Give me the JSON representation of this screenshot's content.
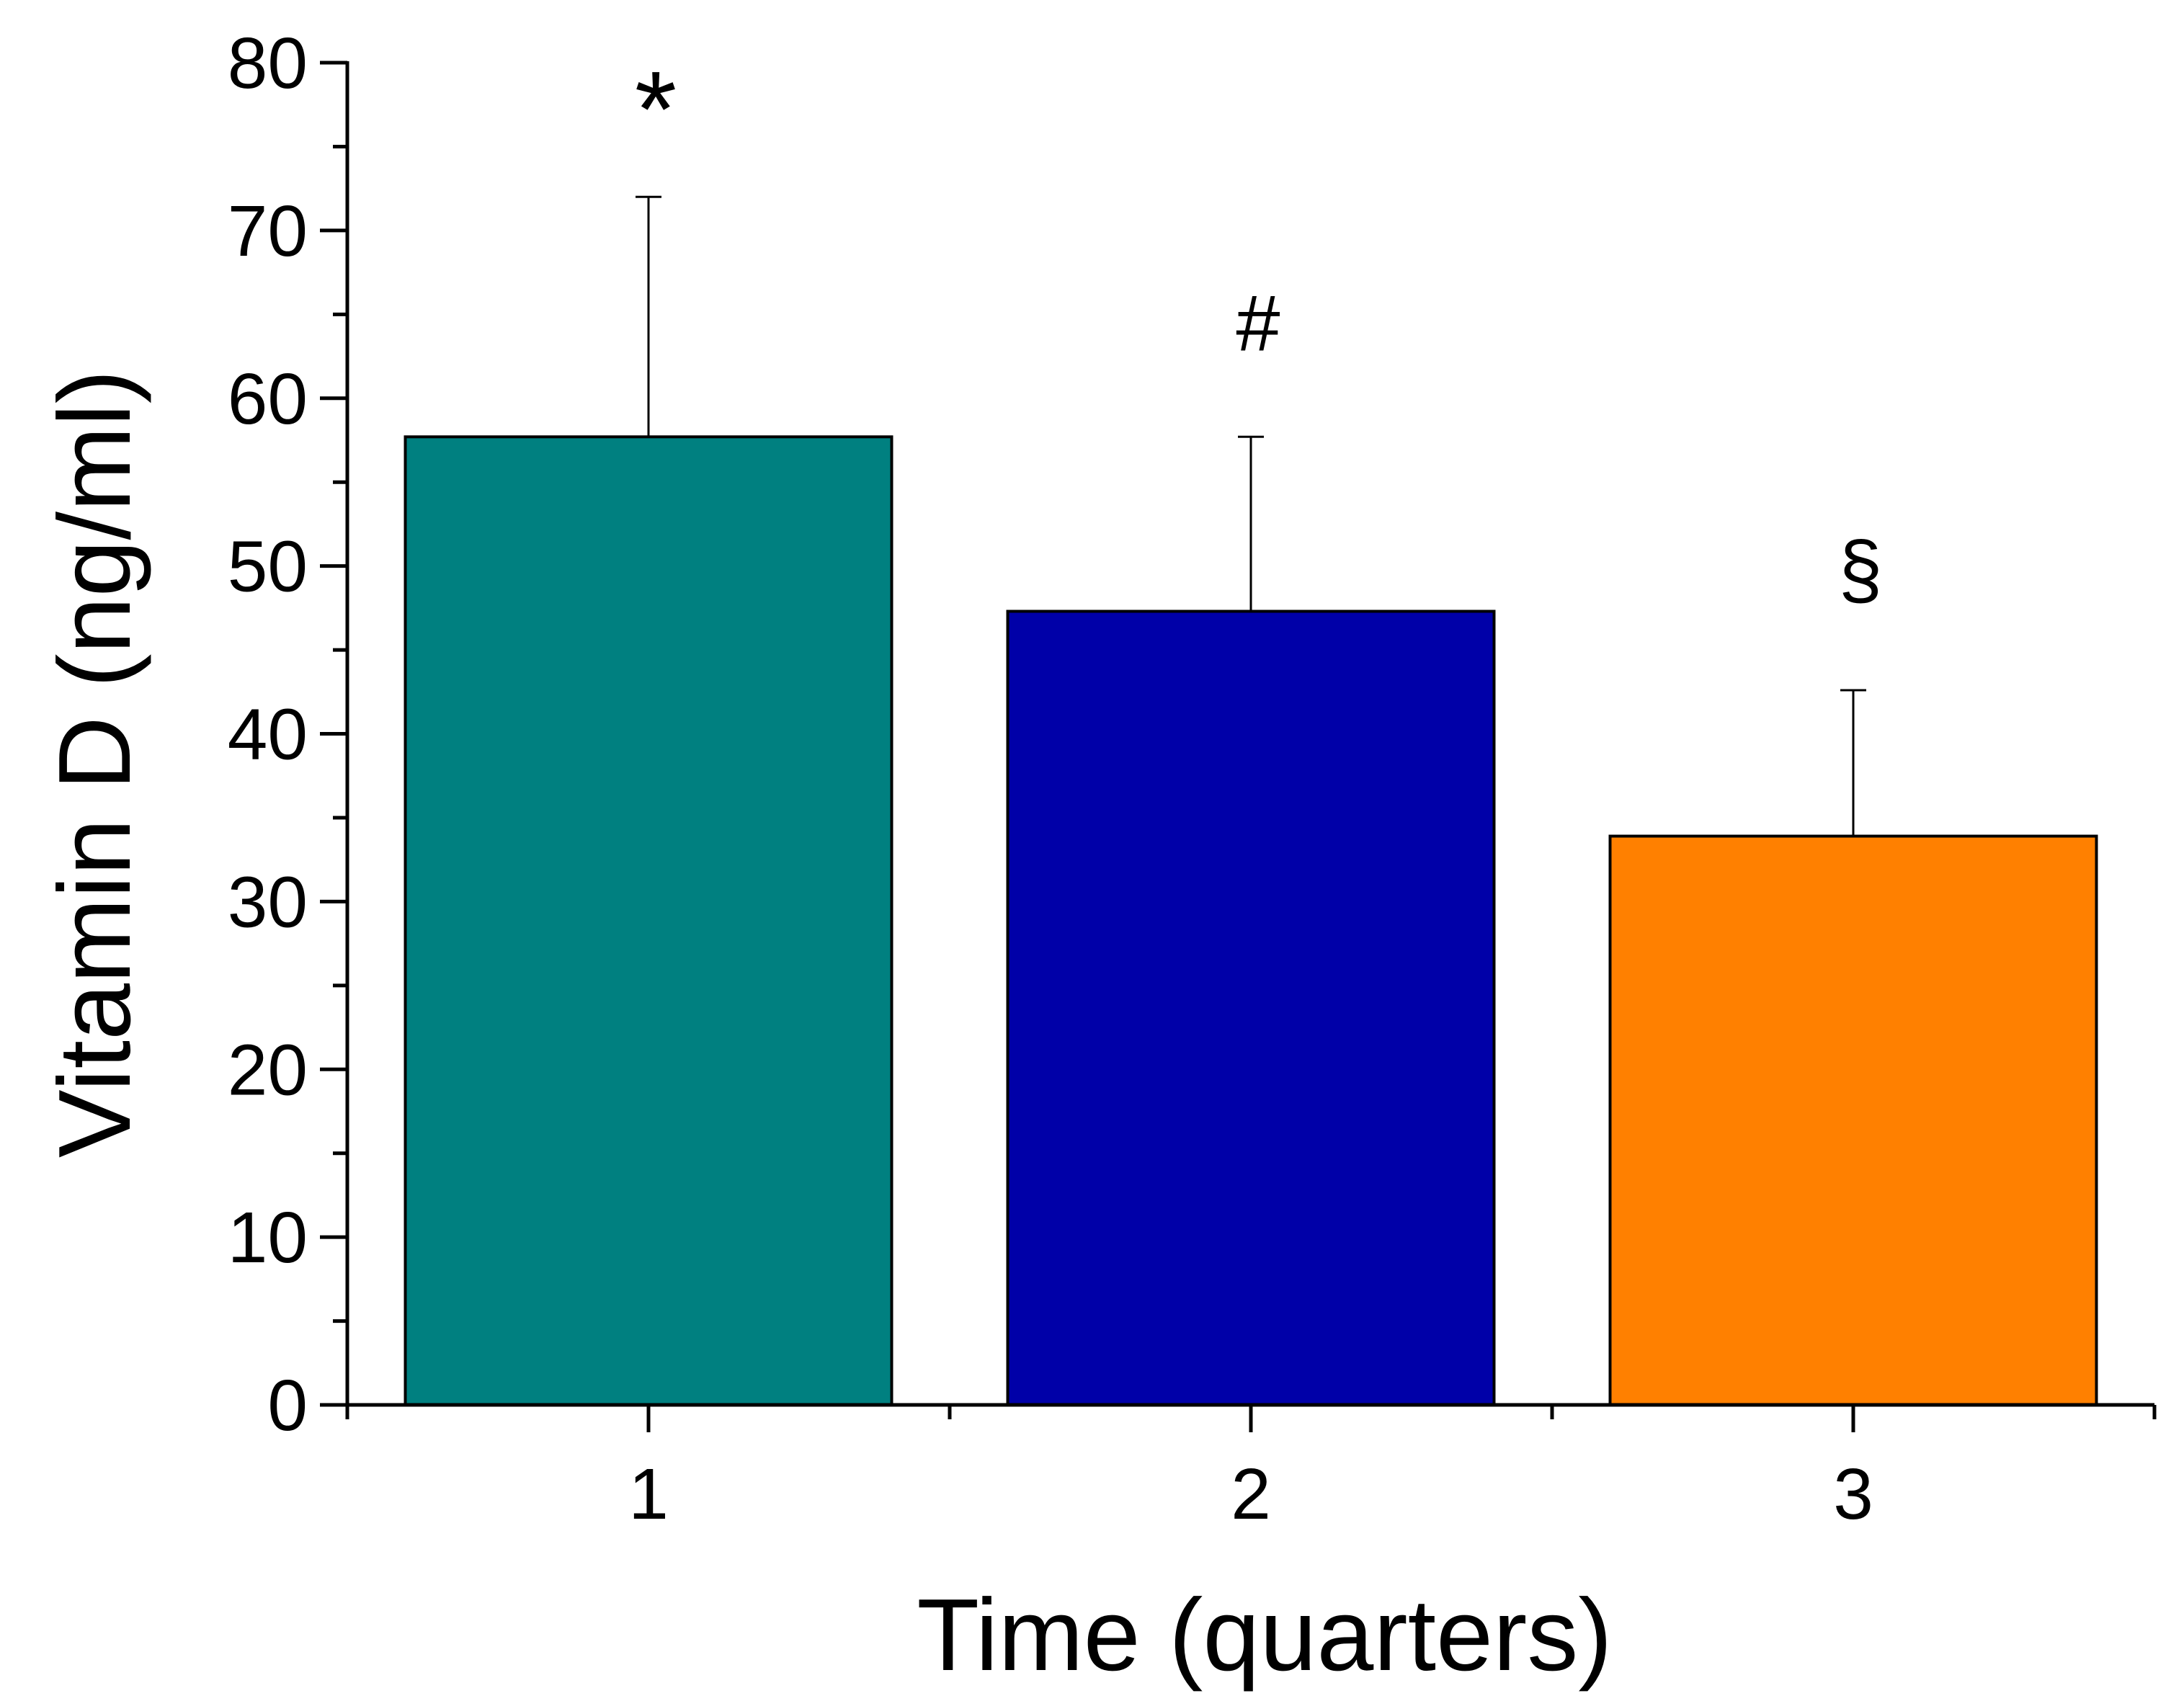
{
  "chart_data": {
    "type": "bar",
    "categories": [
      "1",
      "2",
      "3"
    ],
    "values": [
      57.7,
      47.3,
      33.9
    ],
    "errors": [
      14.3,
      10.4,
      8.7
    ],
    "bar_colors": [
      "#008080",
      "#0000A8",
      "#FF8000"
    ],
    "annotations": [
      "*",
      "#",
      "§"
    ],
    "xlabel": "Time (quarters)",
    "ylabel": "Vitamin D (ng/ml)",
    "ylim": [
      0,
      80
    ],
    "yticks": [
      0,
      10,
      20,
      30,
      40,
      50,
      60,
      70,
      80
    ],
    "grid": false,
    "legend": "none"
  }
}
